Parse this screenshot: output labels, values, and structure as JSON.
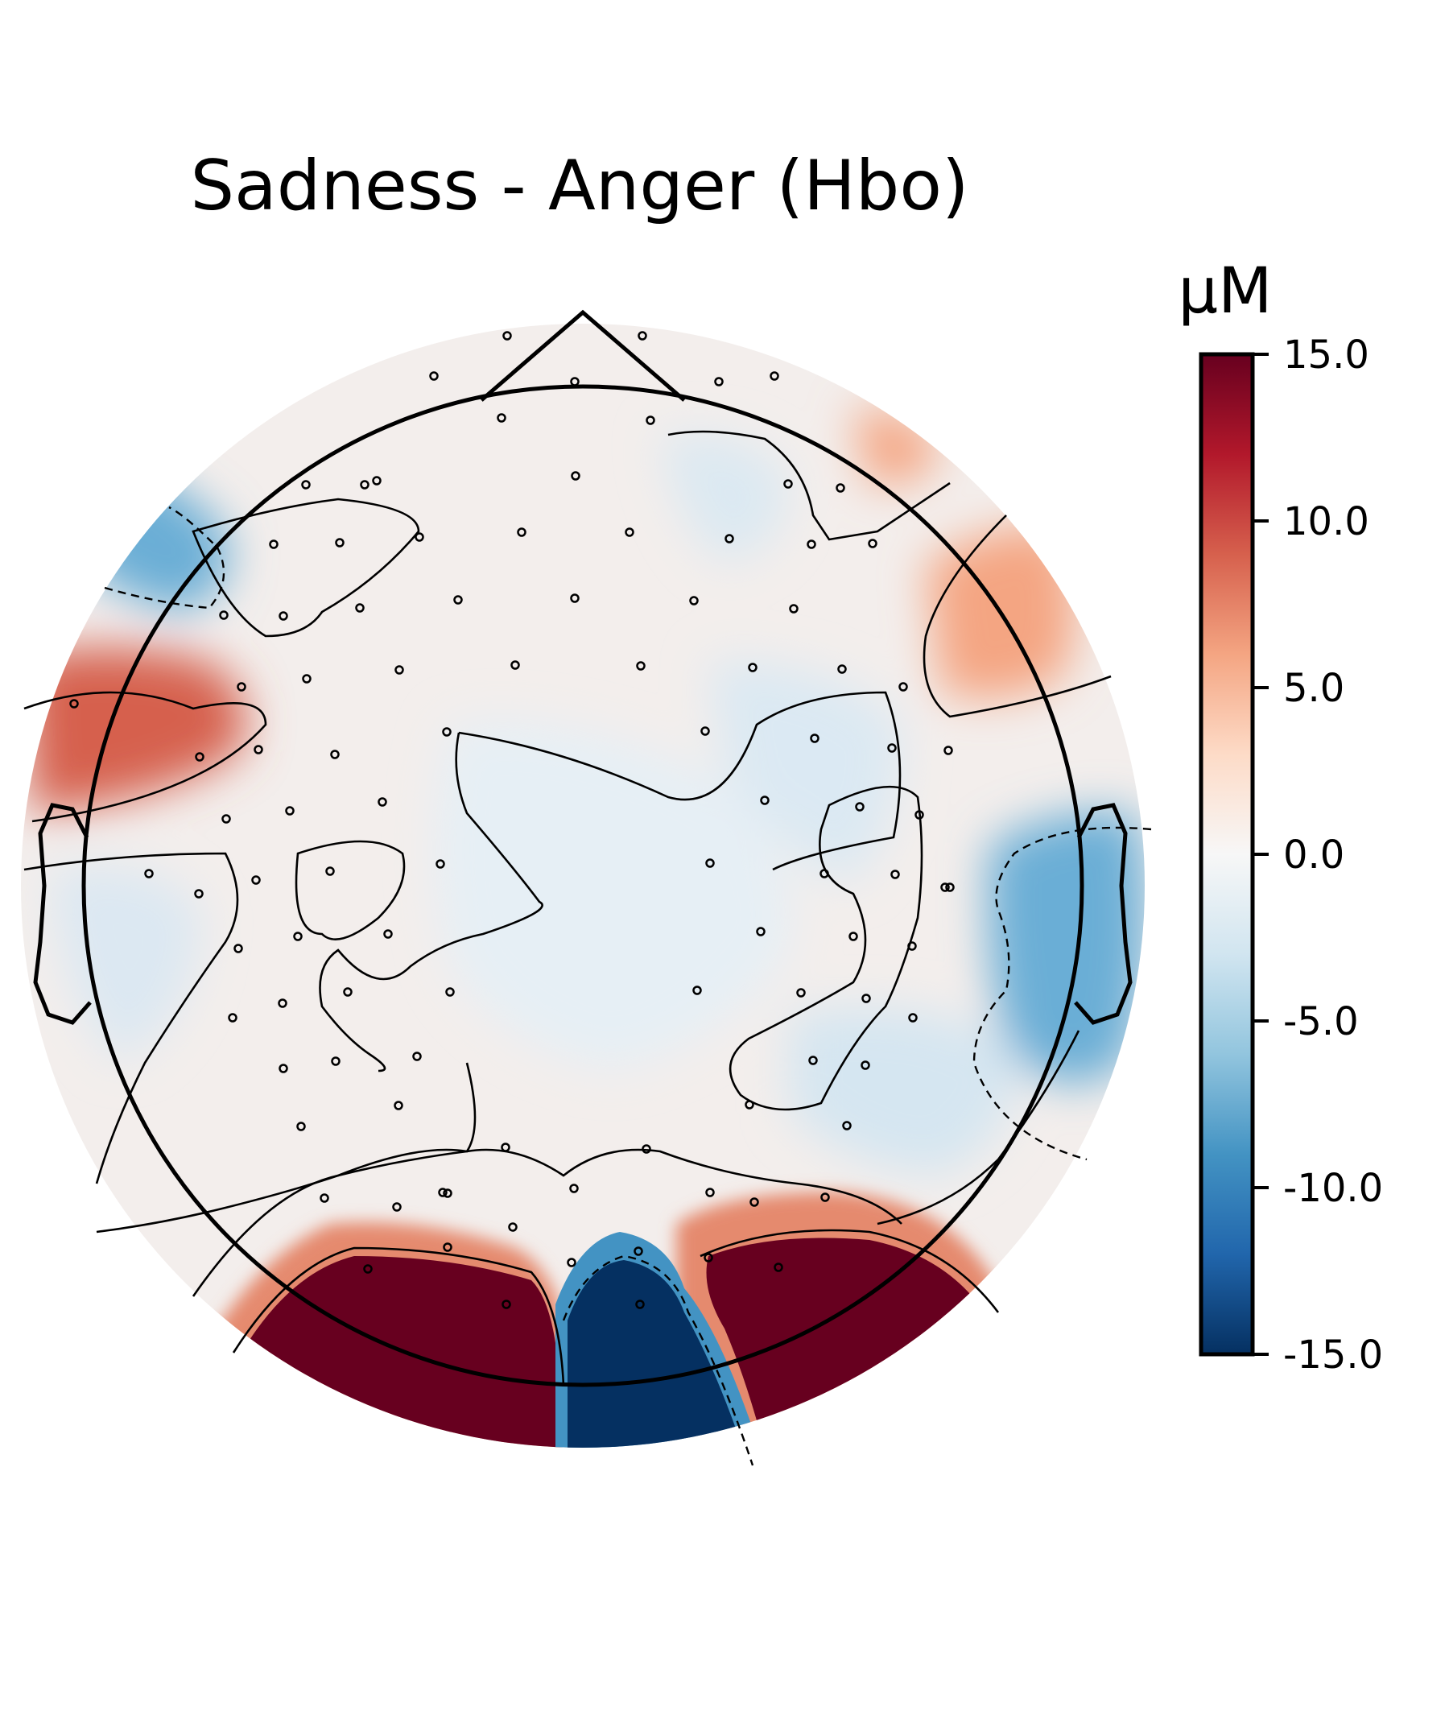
{
  "chart_data": {
    "type": "heatmap",
    "subtype": "topographic head map",
    "title": "Sadness - Anger (Hbo)",
    "colorbar": {
      "label": "µM",
      "vmin": -15.0,
      "vmax": 15.0,
      "ticks": [
        15.0,
        10.0,
        5.0,
        0.0,
        -5.0,
        -10.0,
        -15.0
      ],
      "tick_labels": [
        "15.0",
        "10.0",
        "5.0",
        "0.0",
        "-5.0",
        "-10.0",
        "-15.0"
      ],
      "colormap": "RdBu_r",
      "color_stops": [
        "#053061",
        "#2166ac",
        "#4393c3",
        "#92c5de",
        "#d1e5f0",
        "#f7f7f7",
        "#fddbc7",
        "#f4a582",
        "#d6604d",
        "#b2182b",
        "#67001f"
      ]
    },
    "regions": [
      {
        "region": "occipital-left",
        "value": 15.0,
        "color": "#67001f"
      },
      {
        "region": "occipital-center",
        "value": -15.0,
        "color": "#053061"
      },
      {
        "region": "occipital-right",
        "value": 15.0,
        "color": "#67001f"
      },
      {
        "region": "left-temporal-frontal",
        "value": 8.0,
        "color": "#d6604d"
      },
      {
        "region": "right-temporal",
        "value": -5.0,
        "color": "#6baed6"
      },
      {
        "region": "left-frontal",
        "value": -6.0,
        "color": "#4393c3"
      },
      {
        "region": "right-frontal",
        "value": 4.0,
        "color": "#f4a582"
      }
    ]
  }
}
